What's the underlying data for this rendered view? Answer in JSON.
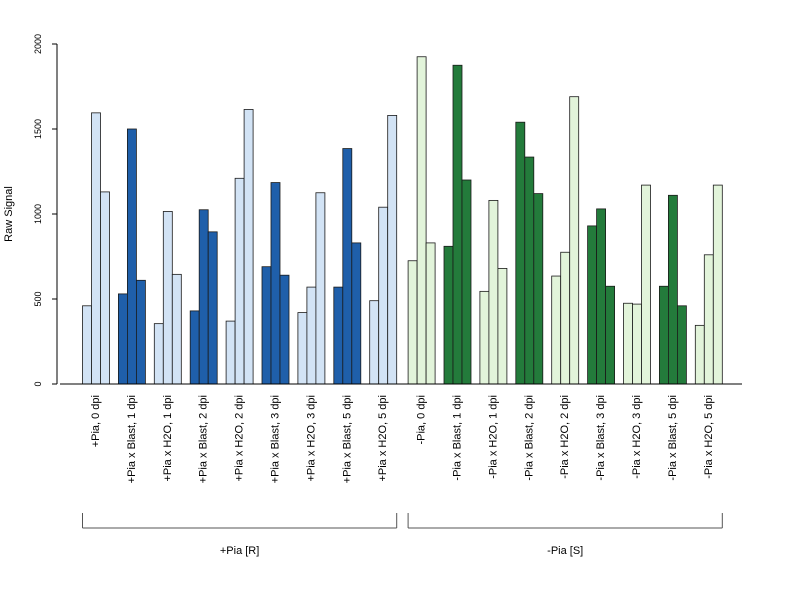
{
  "chart_data": {
    "type": "bar",
    "xlabel": "",
    "ylabel": "Raw Signal",
    "ylim": [
      0,
      2000
    ],
    "y_ticks": [
      0,
      500,
      1000,
      1500,
      2000
    ],
    "bars_per_group": 3,
    "groups": [
      {
        "label": "+Pia, 0 dpi",
        "values": [
          460,
          1595,
          1130
        ],
        "color": "#d2e3f5"
      },
      {
        "label": "+Pia x Blast, 1 dpi",
        "values": [
          530,
          1500,
          610
        ],
        "color": "#1f5faa"
      },
      {
        "label": "+Pia x H2O, 1 dpi",
        "values": [
          355,
          1015,
          645
        ],
        "color": "#d2e3f5"
      },
      {
        "label": "+Pia x Blast, 2 dpi",
        "values": [
          430,
          1025,
          895
        ],
        "color": "#1f5faa"
      },
      {
        "label": "+Pia x H2O, 2 dpi",
        "values": [
          370,
          1210,
          1615
        ],
        "color": "#d2e3f5"
      },
      {
        "label": "+Pia x Blast, 3 dpi",
        "values": [
          690,
          1185,
          640
        ],
        "color": "#1f5faa"
      },
      {
        "label": "+Pia x H2O, 3 dpi",
        "values": [
          420,
          570,
          1125
        ],
        "color": "#d2e3f5"
      },
      {
        "label": "+Pia x Blast, 5 dpi",
        "values": [
          570,
          1385,
          830
        ],
        "color": "#1f5faa"
      },
      {
        "label": "+Pia x H2O, 5 dpi",
        "values": [
          490,
          1040,
          1580
        ],
        "color": "#d2e3f5"
      },
      {
        "label": "-Pia, 0 dpi",
        "values": [
          725,
          1925,
          830
        ],
        "color": "#e2f4da"
      },
      {
        "label": "-Pia x Blast, 1 dpi",
        "values": [
          810,
          1875,
          1200
        ],
        "color": "#237b3b"
      },
      {
        "label": "-Pia x H2O, 1 dpi",
        "values": [
          545,
          1080,
          680
        ],
        "color": "#e2f4da"
      },
      {
        "label": "-Pia x Blast, 2 dpi",
        "values": [
          1540,
          1335,
          1120
        ],
        "color": "#237b3b"
      },
      {
        "label": "-Pia x H2O, 2 dpi",
        "values": [
          635,
          775,
          1690
        ],
        "color": "#e2f4da"
      },
      {
        "label": "-Pia x Blast, 3 dpi",
        "values": [
          930,
          1030,
          575
        ],
        "color": "#237b3b"
      },
      {
        "label": "-Pia x H2O, 3 dpi",
        "values": [
          475,
          470,
          1170
        ],
        "color": "#e2f4da"
      },
      {
        "label": "-Pia x Blast, 5 dpi",
        "values": [
          575,
          1110,
          460
        ],
        "color": "#237b3b"
      },
      {
        "label": "-Pia x H2O, 5 dpi",
        "values": [
          345,
          760,
          1170
        ],
        "color": "#e2f4da"
      }
    ],
    "sections": [
      {
        "label": "+Pia [R]",
        "first_group": 0,
        "last_group": 8
      },
      {
        "label": "-Pia [S]",
        "first_group": 9,
        "last_group": 17
      }
    ],
    "grid": false,
    "legend": "none"
  }
}
